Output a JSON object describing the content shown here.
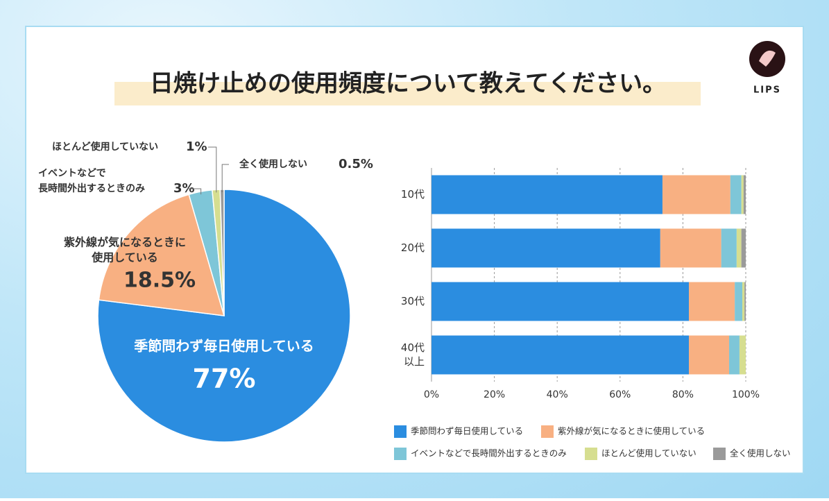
{
  "title": "日焼け止めの使用頻度について教えてください。",
  "logo": "LIPS",
  "chart_data": [
    {
      "type": "pie",
      "categories": [
        [
          "季節問わず毎日使用している"
        ],
        [
          "紫外線が気になるときに",
          "使用している"
        ],
        [
          "イベントなどで",
          "長時間外出するときのみ"
        ],
        [
          "ほとんど使用していない"
        ],
        [
          "全く使用しない"
        ]
      ],
      "values": [
        77,
        18.5,
        3,
        1,
        0.5
      ],
      "value_labels": [
        "77%",
        "18.5%",
        "3%",
        "1%",
        "0.5%"
      ],
      "colors": [
        "#2b8de0",
        "#f8b082",
        "#7ec6d8",
        "#d6de90",
        "#9a9a9a"
      ]
    },
    {
      "type": "stacked-barh",
      "categories": [
        [
          "10代"
        ],
        [
          "20代"
        ],
        [
          "30代"
        ],
        [
          "40代",
          "以上"
        ]
      ],
      "series": [
        {
          "name": "季節問わず毎日使用している",
          "color": "#2b8de0",
          "values": [
            73.5,
            72.8,
            81.9,
            81.9
          ]
        },
        {
          "name": "紫外線が気になるときに使用している",
          "color": "#f8b082",
          "values": [
            21.6,
            19.4,
            14.6,
            12.8
          ]
        },
        {
          "name": "イベントなどで長時間外出するときのみ",
          "color": "#7ec6d8",
          "values": [
            3.5,
            4.9,
            2.4,
            3.3
          ]
        },
        {
          "name": "ほとんど使用していない",
          "color": "#d6de90",
          "values": [
            0.7,
            1.5,
            0.7,
            2.0
          ]
        },
        {
          "name": "全く使用しない",
          "color": "#9a9a9a",
          "values": [
            0.7,
            1.4,
            0.4,
            0
          ]
        }
      ],
      "xlim": [
        0,
        100
      ],
      "xticks": [
        {
          "value": 0,
          "label": "0%"
        },
        {
          "value": 20,
          "label": "20%"
        },
        {
          "value": 40,
          "label": "40%"
        },
        {
          "value": 60,
          "label": "60%"
        },
        {
          "value": 80,
          "label": "80%"
        },
        {
          "value": 100,
          "label": "100%"
        }
      ],
      "grid": true
    }
  ]
}
